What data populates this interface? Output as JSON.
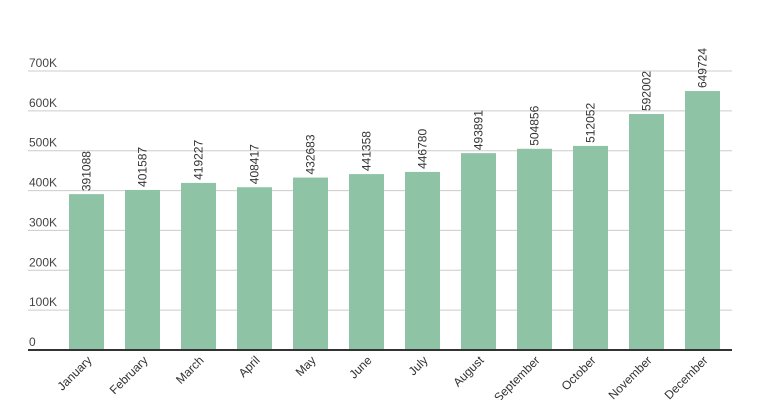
{
  "chart_data": {
    "type": "bar",
    "title": "",
    "xlabel": "",
    "ylabel": "",
    "categories": [
      "January",
      "February",
      "March",
      "April",
      "May",
      "June",
      "July",
      "August",
      "September",
      "October",
      "November",
      "December"
    ],
    "values": [
      391088,
      401587,
      419227,
      408417,
      432683,
      441358,
      446780,
      493891,
      504856,
      512052,
      592002,
      649724
    ],
    "data_labels": [
      "391088",
      "401587",
      "419227",
      "408417",
      "432683",
      "441358",
      "446780",
      "493891",
      "504856",
      "512052",
      "592002",
      "649724"
    ],
    "ylim": [
      0,
      700000
    ],
    "yticks": [
      0,
      100000,
      200000,
      300000,
      400000,
      500000,
      600000,
      700000
    ],
    "ytick_labels": [
      "0",
      "100K",
      "200K",
      "300K",
      "400K",
      "500K",
      "600K",
      "700K"
    ],
    "grid": true,
    "legend": "none",
    "bar_color": "#8ec3a6",
    "grid_color": "#cccccc",
    "axis_color": "#333333"
  }
}
